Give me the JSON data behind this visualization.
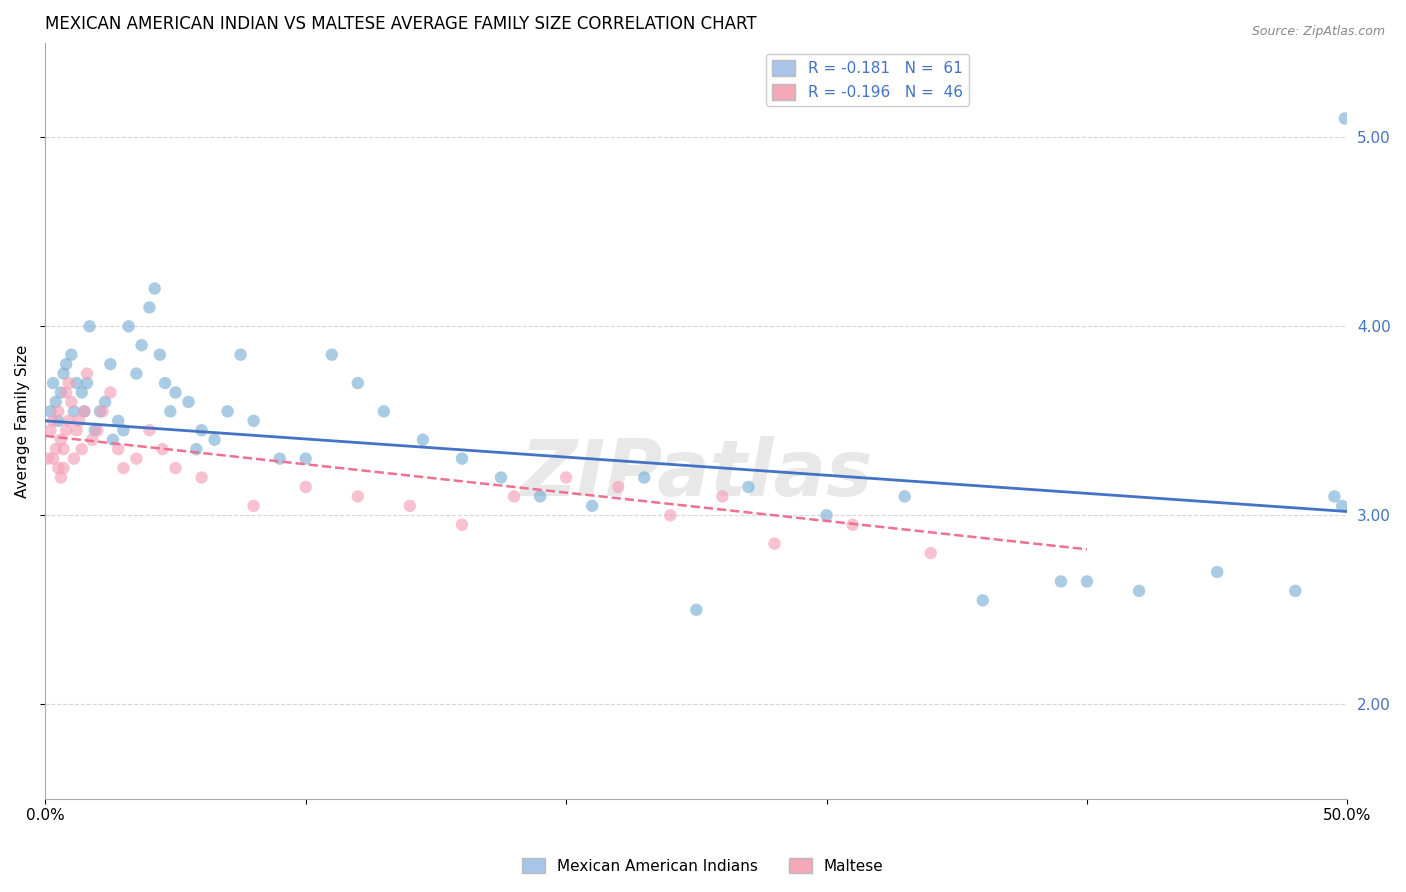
{
  "title": "MEXICAN AMERICAN INDIAN VS MALTESE AVERAGE FAMILY SIZE CORRELATION CHART",
  "source": "Source: ZipAtlas.com",
  "xlabel": "",
  "ylabel": "Average Family Size",
  "xlim": [
    0.0,
    0.5
  ],
  "ylim": [
    1.5,
    5.5
  ],
  "yticks": [
    2.0,
    3.0,
    4.0,
    5.0
  ],
  "xticks": [
    0.0,
    0.1,
    0.2,
    0.3,
    0.4,
    0.5
  ],
  "xtick_labels": [
    "0.0%",
    "",
    "",
    "",
    "",
    "50.0%"
  ],
  "watermark": "ZIPatlas",
  "legend": {
    "blue_label": "R = -0.181   N =  61",
    "pink_label": "R = -0.196   N =  46",
    "blue_color": "#a8c4e8",
    "pink_color": "#f4a8b8"
  },
  "blue_scatter": {
    "x": [
      0.002,
      0.003,
      0.004,
      0.005,
      0.006,
      0.007,
      0.008,
      0.01,
      0.011,
      0.012,
      0.014,
      0.015,
      0.016,
      0.017,
      0.019,
      0.021,
      0.023,
      0.025,
      0.026,
      0.028,
      0.03,
      0.032,
      0.035,
      0.037,
      0.04,
      0.042,
      0.044,
      0.046,
      0.048,
      0.05,
      0.055,
      0.058,
      0.06,
      0.065,
      0.07,
      0.075,
      0.08,
      0.09,
      0.1,
      0.11,
      0.12,
      0.13,
      0.145,
      0.16,
      0.175,
      0.19,
      0.21,
      0.23,
      0.25,
      0.27,
      0.3,
      0.33,
      0.36,
      0.39,
      0.4,
      0.42,
      0.45,
      0.48,
      0.495,
      0.498,
      0.499
    ],
    "y": [
      3.55,
      3.7,
      3.6,
      3.5,
      3.65,
      3.75,
      3.8,
      3.85,
      3.55,
      3.7,
      3.65,
      3.55,
      3.7,
      4.0,
      3.45,
      3.55,
      3.6,
      3.8,
      3.4,
      3.5,
      3.45,
      4.0,
      3.75,
      3.9,
      4.1,
      4.2,
      3.85,
      3.7,
      3.55,
      3.65,
      3.6,
      3.35,
      3.45,
      3.4,
      3.55,
      3.85,
      3.5,
      3.3,
      3.3,
      3.85,
      3.7,
      3.55,
      3.4,
      3.3,
      3.2,
      3.1,
      3.05,
      3.2,
      2.5,
      3.15,
      3.0,
      3.1,
      2.55,
      2.65,
      2.65,
      2.6,
      2.7,
      2.6,
      3.1,
      3.05,
      5.1
    ],
    "color": "#7bafd4",
    "alpha": 0.65,
    "size": 80
  },
  "pink_scatter": {
    "x": [
      0.001,
      0.002,
      0.003,
      0.003,
      0.004,
      0.005,
      0.005,
      0.006,
      0.006,
      0.007,
      0.007,
      0.008,
      0.008,
      0.009,
      0.009,
      0.01,
      0.011,
      0.012,
      0.013,
      0.014,
      0.015,
      0.016,
      0.018,
      0.02,
      0.022,
      0.025,
      0.028,
      0.03,
      0.035,
      0.04,
      0.045,
      0.05,
      0.06,
      0.08,
      0.1,
      0.12,
      0.14,
      0.16,
      0.18,
      0.2,
      0.22,
      0.24,
      0.26,
      0.28,
      0.31,
      0.34
    ],
    "y": [
      3.3,
      3.45,
      3.5,
      3.3,
      3.35,
      3.55,
      3.25,
      3.4,
      3.2,
      3.25,
      3.35,
      3.65,
      3.45,
      3.7,
      3.5,
      3.6,
      3.3,
      3.45,
      3.5,
      3.35,
      3.55,
      3.75,
      3.4,
      3.45,
      3.55,
      3.65,
      3.35,
      3.25,
      3.3,
      3.45,
      3.35,
      3.25,
      3.2,
      3.05,
      3.15,
      3.1,
      3.05,
      2.95,
      3.1,
      3.2,
      3.15,
      3.0,
      3.1,
      2.85,
      2.95,
      2.8
    ],
    "color": "#f4a0b8",
    "alpha": 0.65,
    "size": 80
  },
  "blue_line": {
    "x": [
      0.0,
      0.5
    ],
    "y": [
      3.5,
      3.02
    ],
    "color": "#4472c4",
    "linewidth": 2.0
  },
  "pink_line": {
    "x": [
      0.0,
      0.4
    ],
    "y": [
      3.42,
      2.82
    ],
    "color": "#f07090",
    "linewidth": 1.8,
    "linestyle": "dashed"
  },
  "background_color": "#ffffff",
  "grid_color": "#cccccc",
  "title_fontsize": 12,
  "axis_label_fontsize": 11,
  "tick_fontsize": 11,
  "right_ytick_color": "#4472c4"
}
